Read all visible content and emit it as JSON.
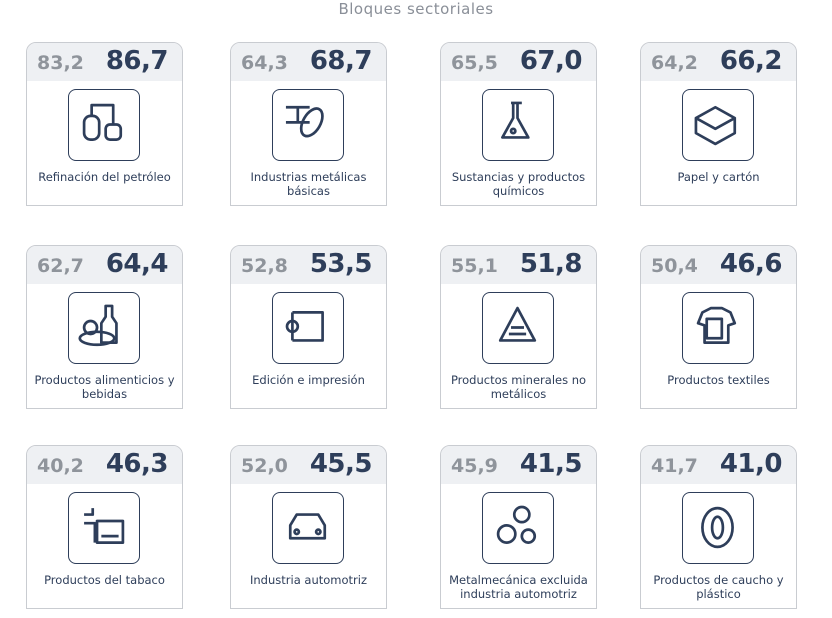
{
  "title": "Bloques sectoriales",
  "cards": [
    {
      "previous": "83,2",
      "current": "86,7",
      "label": "Refinación del petróleo"
    },
    {
      "previous": "64,3",
      "current": "68,7",
      "label": "Industrias metálicas básicas"
    },
    {
      "previous": "65,5",
      "current": "67,0",
      "label": "Sustancias y productos químicos"
    },
    {
      "previous": "64,2",
      "current": "66,2",
      "label": "Papel y cartón"
    },
    {
      "previous": "62,7",
      "current": "64,4",
      "label": "Productos alimenticios y bebidas"
    },
    {
      "previous": "52,8",
      "current": "53,5",
      "label": "Edición e impresión"
    },
    {
      "previous": "55,1",
      "current": "51,8",
      "label": "Productos minerales no metálicos"
    },
    {
      "previous": "50,4",
      "current": "46,6",
      "label": "Productos textiles"
    },
    {
      "previous": "40,2",
      "current": "46,3",
      "label": "Productos del tabaco"
    },
    {
      "previous": "52,0",
      "current": "45,5",
      "label": "Industria automotriz"
    },
    {
      "previous": "45,9",
      "current": "41,5",
      "label": "Metalmecánica excluida industria automotriz"
    },
    {
      "previous": "41,7",
      "current": "41,0",
      "label": "Productos de caucho y plástico"
    }
  ]
}
